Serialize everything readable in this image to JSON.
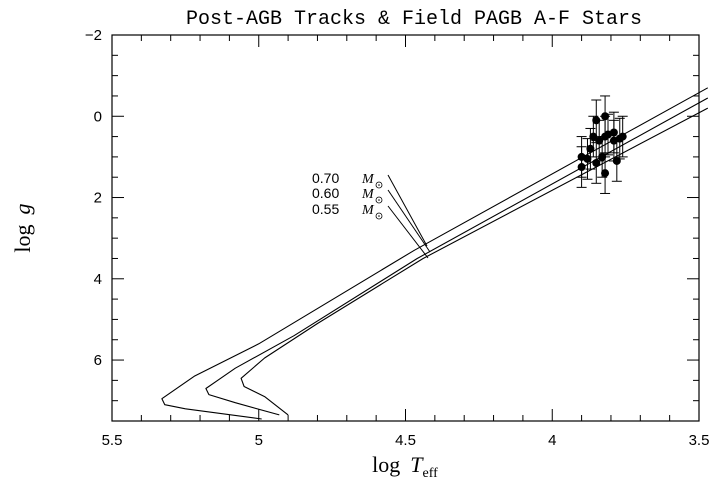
{
  "chart_data": {
    "type": "line",
    "title": "Post-AGB Tracks & Field PAGB A-F Stars",
    "xlabel": "log T_eff",
    "xlabel_main": "log",
    "xlabel_var": "T",
    "xlabel_sub": "eff",
    "ylabel": "log g",
    "ylabel_main": "log",
    "ylabel_var": "g",
    "xlim": [
      5.5,
      3.5
    ],
    "ylim": [
      7.5,
      -2
    ],
    "y_inverted": true,
    "x_inverted": true,
    "x_ticks": [
      5.5,
      5,
      4.5,
      4,
      3.5
    ],
    "x_tick_labels": [
      "5.5",
      "5",
      "4.5",
      "4",
      "3.5"
    ],
    "y_ticks": [
      -2,
      0,
      2,
      4,
      6
    ],
    "y_tick_labels": [
      "−2",
      "0",
      "2",
      "4",
      "6"
    ],
    "grid": false,
    "series": [
      {
        "name": "0.70 M⊙",
        "label_main": "0.70",
        "label_unit": "M",
        "x": [
          3.47,
          4.47,
          5.0,
          5.22,
          5.33,
          5.32,
          5.25,
          4.99
        ],
        "y": [
          -0.7,
          3.3,
          5.6,
          6.4,
          6.95,
          7.1,
          7.2,
          7.45
        ]
      },
      {
        "name": "0.60 M⊙",
        "label_main": "0.60",
        "label_unit": "M",
        "x": [
          3.47,
          4.46,
          4.88,
          5.08,
          5.18,
          5.17,
          5.08,
          4.93
        ],
        "y": [
          -0.45,
          3.5,
          5.4,
          6.2,
          6.7,
          6.85,
          7.05,
          7.35
        ]
      },
      {
        "name": "0.55 M⊙",
        "label_main": "0.55",
        "label_unit": "M",
        "x": [
          3.47,
          4.44,
          4.8,
          4.98,
          5.06,
          5.05,
          4.98,
          4.9
        ],
        "y": [
          -0.2,
          3.5,
          5.1,
          5.95,
          6.45,
          6.65,
          6.9,
          7.35
        ]
      }
    ],
    "stars": [
      {
        "x": 3.9,
        "y": 1.0,
        "err": 0.5
      },
      {
        "x": 3.9,
        "y": 1.25,
        "err": 0.5
      },
      {
        "x": 3.88,
        "y": 1.05,
        "err": 0.5
      },
      {
        "x": 3.87,
        "y": 0.8,
        "err": 0.5
      },
      {
        "x": 3.86,
        "y": 0.5,
        "err": 0.5
      },
      {
        "x": 3.85,
        "y": 1.15,
        "err": 0.5
      },
      {
        "x": 3.85,
        "y": 0.1,
        "err": 0.5
      },
      {
        "x": 3.84,
        "y": 0.6,
        "err": 0.5
      },
      {
        "x": 3.83,
        "y": 1.0,
        "err": 0.5
      },
      {
        "x": 3.82,
        "y": 0.5,
        "err": 0.5
      },
      {
        "x": 3.82,
        "y": 0.0,
        "err": 0.5
      },
      {
        "x": 3.82,
        "y": 1.4,
        "err": 0.5
      },
      {
        "x": 3.81,
        "y": 0.45,
        "err": 0.5
      },
      {
        "x": 3.79,
        "y": 0.4,
        "err": 0.5
      },
      {
        "x": 3.79,
        "y": 0.6,
        "err": 0.5
      },
      {
        "x": 3.78,
        "y": 1.1,
        "err": 0.5
      },
      {
        "x": 3.77,
        "y": 0.55,
        "err": 0.5
      },
      {
        "x": 3.76,
        "y": 0.5,
        "err": 0.5
      }
    ]
  }
}
